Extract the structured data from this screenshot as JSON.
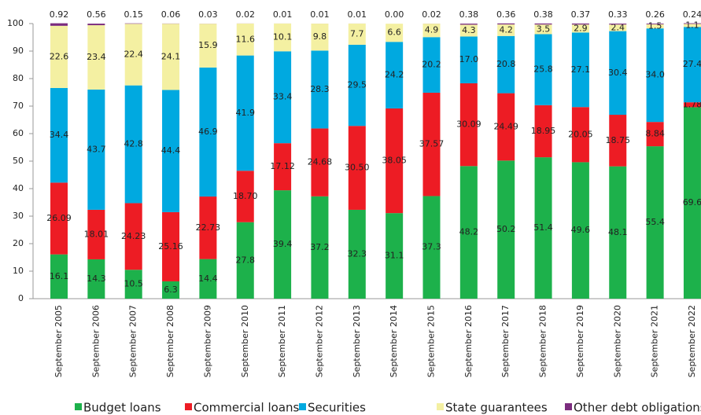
{
  "chart_data": {
    "type": "stacked_bar",
    "categories": [
      "September 2005",
      "September 2006",
      "September 2007",
      "September 2008",
      "September 2009",
      "September 2010",
      "September 2011",
      "September 2012",
      "September 2013",
      "September 2014",
      "September 2015",
      "September 2016",
      "September 2017",
      "September 2018",
      "September 2019",
      "September 2020",
      "September 2021",
      "September 2022"
    ],
    "series": [
      {
        "name": "Budget loans",
        "color": "#1db14b",
        "values": [
          16.1,
          14.3,
          10.5,
          6.3,
          14.4,
          27.8,
          39.4,
          37.2,
          32.3,
          31.1,
          37.3,
          48.2,
          50.2,
          51.4,
          49.6,
          48.1,
          55.4,
          69.6
        ]
      },
      {
        "name": "Commercial loans",
        "color": "#ed1c24",
        "values": [
          26.09,
          18.01,
          24.23,
          25.16,
          22.73,
          18.7,
          17.12,
          24.68,
          30.5,
          38.05,
          37.57,
          30.09,
          24.49,
          18.95,
          20.05,
          18.75,
          8.84,
          1.78
        ],
        "value_labels": [
          "26.09",
          "18.01",
          "24.23",
          "25.16",
          "22.73",
          "18.70",
          "17.12",
          "24.68",
          "30.50",
          "38.05",
          "37.57",
          "30.09",
          "24.49",
          "18.95",
          "20.05",
          "18.75",
          "8.84",
          "1.78"
        ]
      },
      {
        "name": "Securities",
        "color": "#00a9e0",
        "values": [
          34.4,
          43.7,
          42.8,
          44.4,
          46.9,
          41.9,
          33.4,
          28.3,
          29.5,
          24.2,
          20.2,
          17.0,
          20.8,
          25.8,
          27.1,
          30.4,
          34.0,
          27.4
        ],
        "value_labels": [
          "34.4",
          "43.7",
          "42.8",
          "44.4",
          "46.9",
          "41.9",
          "33.4",
          "28.3",
          "29.5",
          "24.2",
          "20.2",
          "17.0",
          "20.8",
          "25.8",
          "27.1",
          "30.4",
          "34.0",
          "27.4"
        ]
      },
      {
        "name": "State guarantees",
        "color": "#f4f0a2",
        "values": [
          22.6,
          23.4,
          22.4,
          24.1,
          15.9,
          11.6,
          10.1,
          9.8,
          7.7,
          6.6,
          4.9,
          4.3,
          4.2,
          3.5,
          2.9,
          2.4,
          1.5,
          1.1
        ]
      },
      {
        "name": "Other debt obligations",
        "color": "#7b2c7e",
        "values": [
          0.92,
          0.56,
          0.15,
          0.06,
          0.03,
          0.02,
          0.01,
          0.01,
          0.01,
          0,
          0.02,
          0.38,
          0.36,
          0.38,
          0.37,
          0.33,
          0.26,
          0.24
        ],
        "value_labels": [
          "0.92",
          "0.56",
          "0.15",
          "0.06",
          "0.03",
          "0.02",
          "0.01",
          "0.01",
          "0.01",
          "0.00",
          "0.02",
          "0.38",
          "0.36",
          "0.38",
          "0.37",
          "0.33",
          "0.26",
          "0.24"
        ]
      }
    ],
    "ylim": [
      0,
      100
    ],
    "yticks": [
      0,
      10,
      20,
      30,
      40,
      50,
      60,
      70,
      80,
      90,
      100
    ],
    "legend": "bottom"
  }
}
